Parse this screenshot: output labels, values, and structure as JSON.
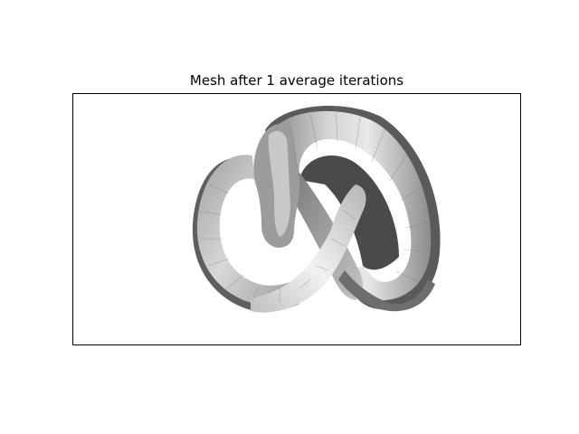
{
  "figure": {
    "title": "Mesh after 1 average iterations"
  },
  "render": {
    "kind": "shaded trefoil knot tube mesh",
    "smoothing_iterations": 1,
    "colormap": "grayscale",
    "colors": {
      "background": "#ffffff",
      "frame": "#000000",
      "light": "#f2f2f2",
      "dark": "#3a3a3a"
    }
  }
}
